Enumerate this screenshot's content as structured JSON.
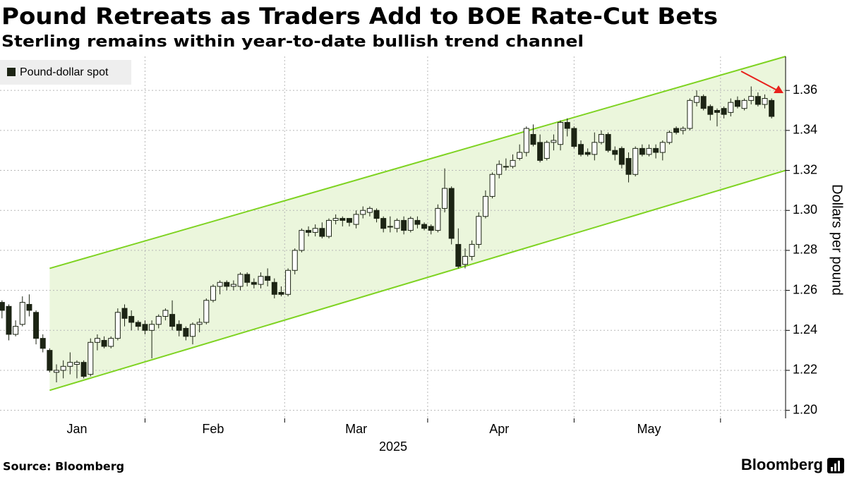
{
  "chart_data": {
    "type": "candlestick",
    "title": "Pound Retreats as Traders Add to BOE Rate-Cut Bets",
    "subtitle": "Sterling remains within year-to-date bullish trend channel",
    "y_label": "Dollars per pound",
    "x_label": "2025",
    "source": "Source: Bloomberg",
    "logo": "Bloomberg",
    "grid": true,
    "legend_position": "top-left",
    "ylim": [
      1.196,
      1.377
    ],
    "yticks": [
      {
        "value": 1.2,
        "label": "1.20"
      },
      1.22,
      1.24,
      1.26,
      1.28,
      {
        "value": 1.3,
        "label": "1.30"
      },
      1.32,
      1.34,
      1.36
    ],
    "categories": [
      null,
      null,
      null,
      null,
      null,
      null,
      null,
      null,
      null,
      null,
      null,
      "Jan",
      null,
      null,
      null,
      null,
      null,
      null,
      null,
      null,
      null,
      null,
      null,
      null,
      null,
      null,
      null,
      null,
      null,
      null,
      null,
      "Feb",
      null,
      null,
      null,
      null,
      null,
      null,
      null,
      null,
      null,
      null,
      null,
      null,
      null,
      null,
      null,
      null,
      null,
      null,
      null,
      null,
      "Mar",
      null,
      null,
      null,
      null,
      null,
      null,
      null,
      null,
      null,
      null,
      null,
      null,
      null,
      null,
      null,
      null,
      null,
      null,
      null,
      null,
      "Apr",
      null,
      null,
      null,
      null,
      null,
      null,
      null,
      null,
      null,
      null,
      null,
      null,
      null,
      null,
      null,
      null,
      null,
      null,
      null,
      null,
      null,
      "May",
      null,
      null,
      null,
      null,
      null,
      null,
      null,
      null,
      null,
      null,
      null,
      null,
      null,
      null,
      null,
      null,
      null,
      null
    ],
    "series": [
      {
        "name": "Pound-dollar spot",
        "color": "#1c2414",
        "up_color": "#ffffff",
        "open": [
          1.254,
          1.252,
          1.238,
          1.243,
          1.253,
          1.249,
          1.236,
          1.23,
          1.219,
          1.22,
          1.222,
          1.223,
          1.224,
          1.218,
          1.234,
          1.235,
          1.232,
          1.236,
          1.251,
          1.247,
          1.244,
          1.243,
          1.24,
          1.243,
          1.247,
          1.248,
          1.243,
          1.241,
          1.237,
          1.243,
          1.244,
          1.255,
          1.262,
          1.264,
          1.262,
          1.262,
          1.268,
          1.264,
          1.263,
          1.267,
          1.264,
          1.259,
          1.258,
          1.27,
          1.28,
          1.29,
          1.289,
          1.291,
          1.287,
          1.295,
          1.296,
          1.296,
          1.293,
          1.298,
          1.299,
          1.3,
          1.296,
          1.292,
          1.291,
          1.295,
          1.29,
          1.295,
          1.293,
          1.292,
          1.29,
          1.301,
          1.311,
          1.283,
          1.273,
          1.277,
          1.283,
          1.297,
          1.307,
          1.318,
          1.322,
          1.322,
          1.326,
          1.329,
          1.338,
          1.334,
          1.326,
          1.334,
          1.333,
          1.344,
          1.341,
          1.333,
          1.329,
          1.328,
          1.334,
          1.338,
          1.33,
          1.331,
          1.326,
          1.318,
          1.331,
          1.328,
          1.331,
          1.329,
          1.334,
          1.341,
          1.34,
          1.341,
          1.354,
          1.357,
          1.352,
          1.35,
          1.351,
          1.349,
          1.355,
          1.351,
          1.355,
          1.357,
          1.353,
          1.355
        ],
        "high": [
          1.255,
          1.253,
          1.245,
          1.257,
          1.258,
          1.25,
          1.238,
          1.231,
          1.223,
          1.225,
          1.229,
          1.225,
          1.225,
          1.236,
          1.238,
          1.237,
          1.237,
          1.251,
          1.253,
          1.25,
          1.245,
          1.245,
          1.245,
          1.248,
          1.251,
          1.255,
          1.245,
          1.242,
          1.244,
          1.246,
          1.256,
          1.263,
          1.265,
          1.265,
          1.265,
          1.269,
          1.269,
          1.266,
          1.269,
          1.271,
          1.266,
          1.262,
          1.271,
          1.281,
          1.291,
          1.292,
          1.293,
          1.294,
          1.296,
          1.298,
          1.297,
          1.296,
          1.3,
          1.302,
          1.302,
          1.301,
          1.297,
          1.297,
          1.296,
          1.297,
          1.297,
          1.297,
          1.294,
          1.293,
          1.303,
          1.321,
          1.312,
          1.291,
          1.281,
          1.285,
          1.299,
          1.31,
          1.319,
          1.325,
          1.326,
          1.328,
          1.333,
          1.342,
          1.343,
          1.338,
          1.335,
          1.338,
          1.345,
          1.346,
          1.342,
          1.335,
          1.331,
          1.339,
          1.34,
          1.339,
          1.332,
          1.332,
          1.329,
          1.332,
          1.333,
          1.333,
          1.333,
          1.335,
          1.34,
          1.342,
          1.342,
          1.356,
          1.36,
          1.358,
          1.353,
          1.351,
          1.352,
          1.356,
          1.357,
          1.356,
          1.362,
          1.359,
          1.358,
          1.356
        ],
        "low": [
          1.246,
          1.235,
          1.237,
          1.242,
          1.247,
          1.233,
          1.229,
          1.219,
          1.214,
          1.216,
          1.218,
          1.216,
          1.216,
          1.217,
          1.23,
          1.231,
          1.231,
          1.235,
          1.242,
          1.24,
          1.24,
          1.238,
          1.226,
          1.241,
          1.245,
          1.24,
          1.237,
          1.235,
          1.233,
          1.239,
          1.243,
          1.254,
          1.258,
          1.26,
          1.26,
          1.26,
          1.262,
          1.261,
          1.261,
          1.262,
          1.256,
          1.257,
          1.257,
          1.268,
          1.279,
          1.287,
          1.287,
          1.286,
          1.286,
          1.293,
          1.292,
          1.292,
          1.291,
          1.296,
          1.297,
          1.294,
          1.289,
          1.289,
          1.289,
          1.288,
          1.289,
          1.291,
          1.29,
          1.288,
          1.289,
          1.299,
          1.283,
          1.271,
          1.271,
          1.275,
          1.281,
          1.296,
          1.306,
          1.316,
          1.32,
          1.321,
          1.325,
          1.327,
          1.332,
          1.324,
          1.325,
          1.33,
          1.33,
          1.337,
          1.331,
          1.327,
          1.327,
          1.325,
          1.333,
          1.329,
          1.325,
          1.321,
          1.314,
          1.317,
          1.327,
          1.327,
          1.326,
          1.325,
          1.333,
          1.338,
          1.338,
          1.34,
          1.352,
          1.35,
          1.345,
          1.342,
          1.346,
          1.347,
          1.351,
          1.35,
          1.353,
          1.352,
          1.351,
          1.346
        ],
        "close": [
          1.25,
          1.238,
          1.242,
          1.254,
          1.25,
          1.236,
          1.231,
          1.22,
          1.22,
          1.222,
          1.224,
          1.224,
          1.217,
          1.234,
          1.236,
          1.232,
          1.236,
          1.249,
          1.246,
          1.244,
          1.242,
          1.24,
          1.243,
          1.247,
          1.25,
          1.242,
          1.24,
          1.237,
          1.243,
          1.244,
          1.255,
          1.262,
          1.264,
          1.262,
          1.263,
          1.268,
          1.264,
          1.263,
          1.267,
          1.265,
          1.258,
          1.258,
          1.27,
          1.28,
          1.29,
          1.289,
          1.291,
          1.287,
          1.295,
          1.296,
          1.295,
          1.294,
          1.298,
          1.3,
          1.301,
          1.296,
          1.291,
          1.292,
          1.295,
          1.29,
          1.296,
          1.293,
          1.291,
          1.29,
          1.301,
          1.311,
          1.286,
          1.272,
          1.277,
          1.283,
          1.297,
          1.307,
          1.318,
          1.323,
          1.322,
          1.325,
          1.329,
          1.341,
          1.333,
          1.325,
          1.334,
          1.335,
          1.344,
          1.341,
          1.332,
          1.328,
          1.328,
          1.334,
          1.338,
          1.33,
          1.328,
          1.323,
          1.318,
          1.331,
          1.328,
          1.331,
          1.329,
          1.334,
          1.339,
          1.339,
          1.341,
          1.355,
          1.357,
          1.351,
          1.348,
          1.349,
          1.348,
          1.354,
          1.352,
          1.355,
          1.357,
          1.353,
          1.356,
          1.347
        ]
      }
    ],
    "channel": {
      "start": 7,
      "upper": [
        1.271,
        1.377
      ],
      "lower": [
        1.21,
        1.32
      ],
      "color": "#7ed321",
      "fill": "#ebf6dc"
    }
  }
}
